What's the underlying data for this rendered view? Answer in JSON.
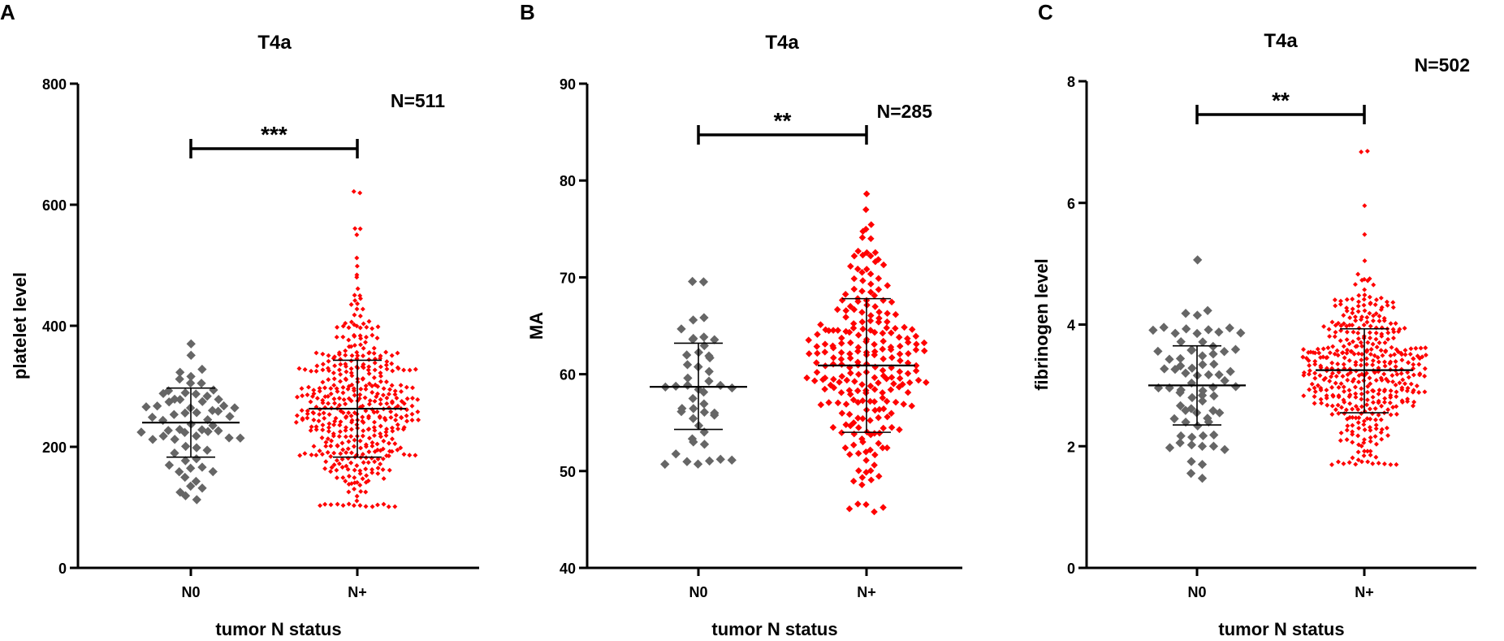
{
  "chart_data": [
    {
      "type": "scatter",
      "panel": "A",
      "title": "T4a",
      "xlabel": "tumor N status",
      "ylabel": "platelet level",
      "ylim": [
        0,
        800
      ],
      "yticks": [
        0,
        200,
        400,
        600,
        800
      ],
      "categories": [
        "N0",
        "N+"
      ],
      "n_label": "N=511",
      "significance": "***",
      "series": [
        {
          "name": "N0",
          "color": "#666666",
          "mean": 240,
          "sd_low": 183,
          "sd_high": 297,
          "min": 116,
          "max": 370,
          "n": 64,
          "marker": "large"
        },
        {
          "name": "N+",
          "color": "#ff0000",
          "mean": 263,
          "sd_low": 183,
          "sd_high": 343,
          "min": 103,
          "max": 622,
          "n": 447,
          "marker": "small",
          "outliers": [
            622,
            562,
            558,
            548,
            510,
            500
          ]
        }
      ]
    },
    {
      "type": "scatter",
      "panel": "B",
      "title": "T4a",
      "xlabel": "tumor N status",
      "ylabel": "MA",
      "ylim": [
        40,
        90
      ],
      "yticks": [
        40,
        50,
        60,
        70,
        80,
        90
      ],
      "categories": [
        "N0",
        "N+"
      ],
      "n_label": "N=285",
      "significance": "**",
      "series": [
        {
          "name": "N0",
          "color": "#666666",
          "mean": 58.7,
          "sd_low": 54.3,
          "sd_high": 63.2,
          "min": 51.0,
          "max": 69.4,
          "n": 46,
          "marker": "large"
        },
        {
          "name": "N+",
          "color": "#ff0000",
          "mean": 60.9,
          "sd_low": 54.0,
          "sd_high": 67.8,
          "min": 46.0,
          "max": 78.8,
          "n": 239,
          "marker": "medium"
        }
      ]
    },
    {
      "type": "scatter",
      "panel": "C",
      "title": "T4a",
      "xlabel": "tumor N status",
      "ylabel": "fibrinogen level",
      "ylim": [
        0,
        8
      ],
      "yticks": [
        0,
        2,
        4,
        6,
        8
      ],
      "categories": [
        "N0",
        "N+"
      ],
      "n_label": "N=502",
      "significance": "**",
      "series": [
        {
          "name": "N0",
          "color": "#666666",
          "mean": 3.0,
          "sd_low": 2.35,
          "sd_high": 3.65,
          "min": 1.5,
          "max": 5.1,
          "n": 72,
          "marker": "large"
        },
        {
          "name": "N+",
          "color": "#ff0000",
          "mean": 3.25,
          "sd_low": 2.55,
          "sd_high": 3.93,
          "min": 1.72,
          "max": 6.85,
          "n": 430,
          "marker": "small",
          "outliers": [
            6.85,
            5.95,
            5.5
          ]
        }
      ]
    }
  ]
}
